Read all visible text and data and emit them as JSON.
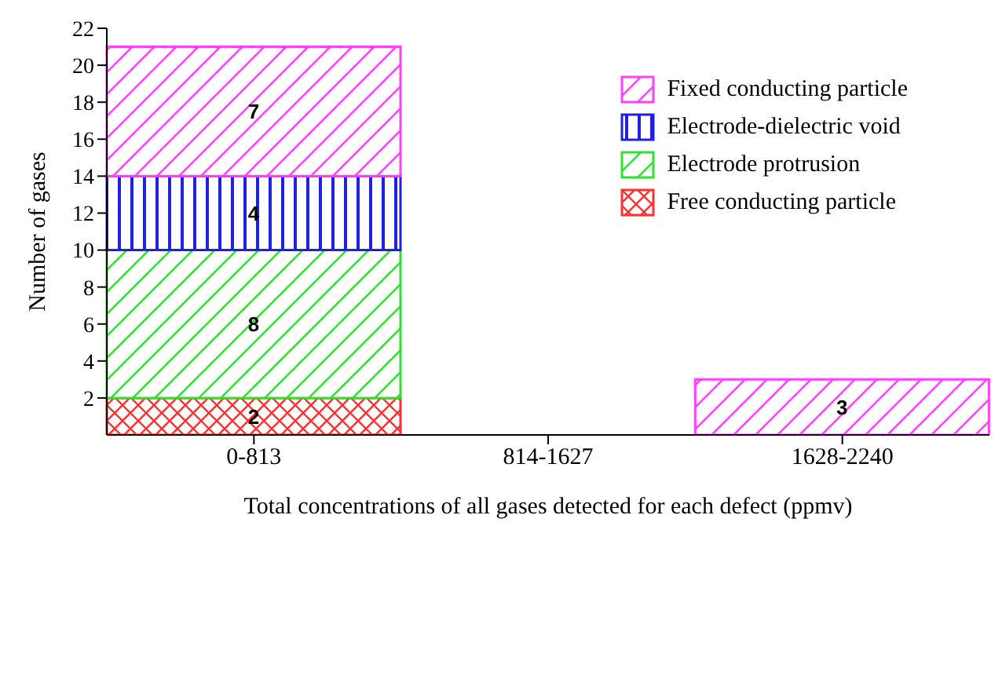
{
  "chart_data": {
    "type": "bar",
    "stacked": true,
    "xlabel": "Total concentrations of all gases detected for each defect (ppmv)",
    "ylabel": "Number of gases",
    "categories": [
      "0-813",
      "814-1627",
      "1628-2240"
    ],
    "series": [
      {
        "name": "Free conducting particle",
        "color": "#ff3030",
        "values": [
          2,
          null,
          null
        ]
      },
      {
        "name": "Electrode protrusion",
        "color": "#30e030",
        "values": [
          8,
          null,
          null
        ]
      },
      {
        "name": "Electrode-dielectric void",
        "color": "#2020e0",
        "values": [
          4,
          null,
          null
        ]
      },
      {
        "name": "Fixed conducting particle",
        "color": "#ff40ff",
        "values": [
          7,
          null,
          3
        ]
      }
    ],
    "ylim": [
      0,
      22
    ],
    "yticks": [
      2,
      4,
      6,
      8,
      10,
      12,
      14,
      16,
      18,
      20,
      22
    ],
    "grid": false,
    "legend": "top right",
    "data_labels": true
  }
}
